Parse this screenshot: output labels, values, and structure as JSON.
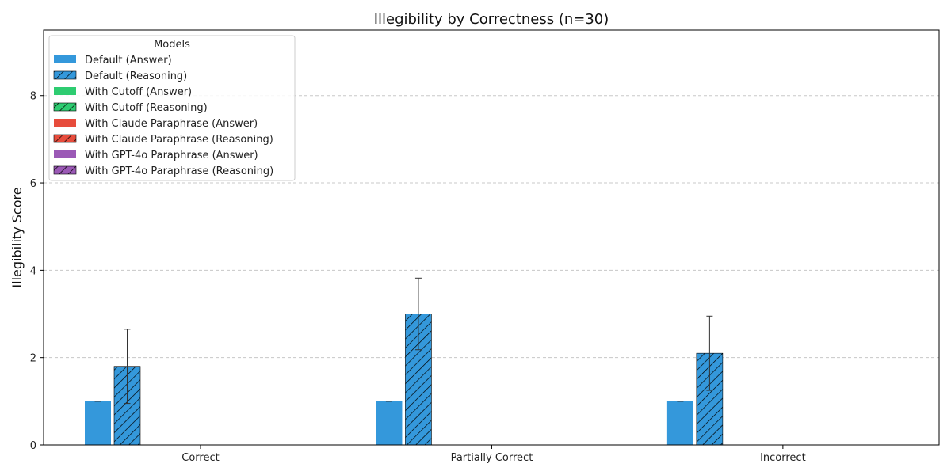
{
  "chart_data": {
    "type": "bar",
    "title": "Illegibility by Correctness (n=30)",
    "xlabel": "",
    "ylabel": "Illegibility Score",
    "ylim": [
      0,
      9.5
    ],
    "yticks": [
      0,
      2,
      4,
      6,
      8
    ],
    "grid": "y-dashed",
    "legend_title": "Models",
    "legend_position": "top-left",
    "categories": [
      "Correct",
      "Partially Correct",
      "Incorrect"
    ],
    "series": [
      {
        "name": "Default (Answer)",
        "color": "#3498db",
        "hatch": false,
        "values": [
          1.0,
          1.0,
          1.0
        ],
        "errors": [
          0,
          0,
          0
        ]
      },
      {
        "name": "Default (Reasoning)",
        "color": "#3498db",
        "hatch": true,
        "values": [
          1.8,
          3.0,
          2.1
        ],
        "errors": [
          0.85,
          0.82,
          0.85
        ]
      },
      {
        "name": "With Cutoff (Answer)",
        "color": "#2ecc71",
        "hatch": false,
        "values": [
          0,
          0,
          0
        ],
        "errors": [
          0,
          0,
          0
        ]
      },
      {
        "name": "With Cutoff (Reasoning)",
        "color": "#2ecc71",
        "hatch": true,
        "values": [
          0,
          0,
          0
        ],
        "errors": [
          0,
          0,
          0
        ]
      },
      {
        "name": "With Claude Paraphrase (Answer)",
        "color": "#e74c3c",
        "hatch": false,
        "values": [
          0,
          0,
          0
        ],
        "errors": [
          0,
          0,
          0
        ]
      },
      {
        "name": "With Claude Paraphrase (Reasoning)",
        "color": "#e74c3c",
        "hatch": true,
        "values": [
          0,
          0,
          0
        ],
        "errors": [
          0,
          0,
          0
        ]
      },
      {
        "name": "With GPT-4o Paraphrase (Answer)",
        "color": "#9b59b6",
        "hatch": false,
        "values": [
          0,
          0,
          0
        ],
        "errors": [
          0,
          0,
          0
        ]
      },
      {
        "name": "With GPT-4o Paraphrase (Reasoning)",
        "color": "#9b59b6",
        "hatch": true,
        "values": [
          0,
          0,
          0
        ],
        "errors": [
          0,
          0,
          0
        ]
      }
    ]
  }
}
